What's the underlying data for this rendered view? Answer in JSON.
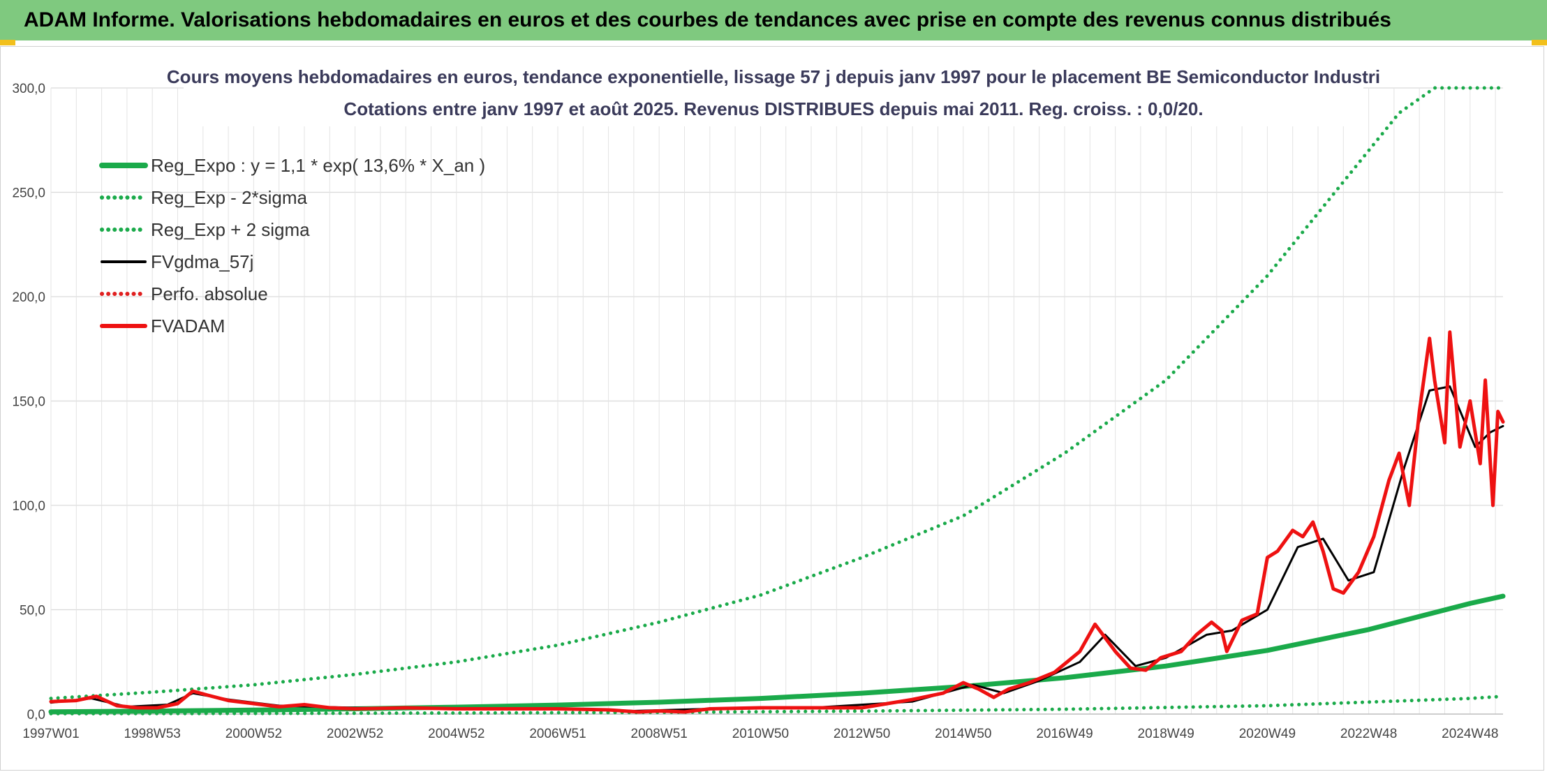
{
  "header": {
    "title": "ADAM Informe. Valorisations hebdomadaires en euros et des courbes de tendances avec prise en compte des revenus connus distribués"
  },
  "chart_data": {
    "type": "line",
    "title": "Cours moyens hebdomadaires en euros, tendance exponentielle, lissage 57 j depuis janv 1997 pour le placement BE Semiconductor Industri",
    "subtitle": "Cotations entre janv 1997 et août 2025. Revenus DISTRIBUES depuis mai 2011. Reg. croiss. : 0,0/20.",
    "xlabel": "",
    "ylabel": "",
    "xlim": [
      1997.0,
      2025.65
    ],
    "ylim": [
      0,
      300
    ],
    "y_ticks": [
      "0,0",
      "50,0",
      "100,0",
      "150,0",
      "200,0",
      "250,0",
      "300,0"
    ],
    "x_ticks": [
      {
        "x": 1997.0,
        "label": "1997W01"
      },
      {
        "x": 1999.0,
        "label": "1998W53"
      },
      {
        "x": 2001.0,
        "label": "2000W52"
      },
      {
        "x": 2003.0,
        "label": "2002W52"
      },
      {
        "x": 2005.0,
        "label": "2004W52"
      },
      {
        "x": 2007.0,
        "label": "2006W51"
      },
      {
        "x": 2009.0,
        "label": "2008W51"
      },
      {
        "x": 2011.0,
        "label": "2010W50"
      },
      {
        "x": 2013.0,
        "label": "2012W50"
      },
      {
        "x": 2015.0,
        "label": "2014W50"
      },
      {
        "x": 2017.0,
        "label": "2016W49"
      },
      {
        "x": 2019.0,
        "label": "2018W49"
      },
      {
        "x": 2021.0,
        "label": "2020W49"
      },
      {
        "x": 2023.0,
        "label": "2022W48"
      },
      {
        "x": 2025.0,
        "label": "2024W48"
      }
    ],
    "grid": true,
    "legend_position": "top-left",
    "series": [
      {
        "name": "Reg_Expo : y = 1,1 * exp( 13,6% *  X_an )",
        "style": "solid",
        "color": "#1aaa4a",
        "x": [
          1997,
          1999,
          2001,
          2003,
          2005,
          2007,
          2009,
          2011,
          2013,
          2015,
          2017,
          2019,
          2021,
          2023,
          2025,
          2025.65
        ],
        "y": [
          1.1,
          1.4,
          1.9,
          2.5,
          3.3,
          4.3,
          5.7,
          7.5,
          10.0,
          13.2,
          17.4,
          23.0,
          30.5,
          40.5,
          53.0,
          56.5
        ]
      },
      {
        "name": "Reg_Exp - 2*sigma",
        "style": "dotted",
        "color": "#1aaa4a",
        "x": [
          1997,
          2001,
          2005,
          2009,
          2013,
          2017,
          2021,
          2025,
          2025.65
        ],
        "y": [
          0.2,
          0.3,
          0.5,
          0.8,
          1.4,
          2.3,
          4.0,
          7.5,
          8.5
        ]
      },
      {
        "name": "Reg_Exp + 2 sigma",
        "style": "dotted",
        "color": "#1aaa4a",
        "x": [
          1997,
          1999,
          2001,
          2003,
          2005,
          2007,
          2009,
          2011,
          2013,
          2015,
          2017,
          2019,
          2021,
          2022,
          2023,
          2023.6,
          2024.3,
          2025.65
        ],
        "y": [
          7.5,
          10.5,
          14.0,
          19.0,
          25.0,
          33.0,
          44.0,
          57.0,
          75.0,
          95.0,
          125.0,
          160.0,
          210.0,
          240.0,
          270.0,
          288.0,
          300.0,
          300.0
        ]
      },
      {
        "name": "FVgdma_57j",
        "style": "solid",
        "color": "#000000",
        "x": [
          1997,
          1997.8,
          1998.5,
          1999.3,
          1999.8,
          2000.5,
          2001.5,
          2003,
          2005,
          2007,
          2008.5,
          2010,
          2012,
          2014,
          2015.2,
          2015.8,
          2016.5,
          2017.3,
          2017.8,
          2018.4,
          2019,
          2019.8,
          2020.3,
          2021,
          2021.6,
          2022.1,
          2022.6,
          2023.1,
          2023.7,
          2024.2,
          2024.6,
          2025.1,
          2025.4,
          2025.65
        ],
        "y": [
          5.5,
          7.5,
          3.5,
          4.5,
          10,
          7,
          4,
          3,
          2.5,
          2.5,
          1.5,
          2.5,
          3,
          6,
          14,
          10,
          16,
          25,
          38,
          23,
          27,
          38,
          40,
          50,
          80,
          84,
          64,
          68,
          118,
          155,
          157,
          128,
          135,
          138
        ]
      },
      {
        "name": "Perfo. absolue",
        "style": "dotted",
        "color": "#e02020",
        "x": [],
        "y": []
      },
      {
        "name": "FVADAM",
        "style": "solid",
        "color": "#ee1111",
        "x": [
          1997,
          1997.5,
          1997.9,
          1998.3,
          1998.7,
          1999.1,
          1999.5,
          1999.8,
          2000.1,
          2000.5,
          2001,
          2001.5,
          2002,
          2002.5,
          2003,
          2004,
          2005,
          2006,
          2007,
          2008,
          2008.6,
          2009,
          2009.5,
          2010,
          2011,
          2012,
          2013,
          2014,
          2014.6,
          2015.0,
          2015.3,
          2015.6,
          2015.9,
          2016.3,
          2016.8,
          2017.3,
          2017.6,
          2018.0,
          2018.3,
          2018.6,
          2018.9,
          2019.3,
          2019.6,
          2019.9,
          2020.1,
          2020.2,
          2020.5,
          2020.8,
          2021.0,
          2021.2,
          2021.5,
          2021.7,
          2021.9,
          2022.1,
          2022.3,
          2022.5,
          2022.8,
          2023.1,
          2023.4,
          2023.6,
          2023.8,
          2024.0,
          2024.2,
          2024.3,
          2024.5,
          2024.6,
          2024.8,
          2025.0,
          2025.2,
          2025.3,
          2025.45,
          2025.55,
          2025.65
        ],
        "y": [
          6,
          6.5,
          8.5,
          4,
          3,
          3,
          5,
          11,
          9,
          6.5,
          5,
          3.5,
          4.5,
          3,
          2.5,
          3,
          2.5,
          2.5,
          2.5,
          2,
          1,
          1.5,
          1,
          2.5,
          3,
          3,
          3,
          7,
          10,
          15,
          12,
          8,
          12,
          15,
          20,
          30,
          43,
          30,
          22,
          21,
          27,
          30,
          38,
          44,
          40,
          30,
          45,
          48,
          75,
          78,
          88,
          85,
          92,
          78,
          60,
          58,
          68,
          85,
          112,
          125,
          100,
          145,
          180,
          160,
          130,
          183,
          128,
          150,
          120,
          160,
          100,
          145,
          140
        ]
      }
    ]
  }
}
